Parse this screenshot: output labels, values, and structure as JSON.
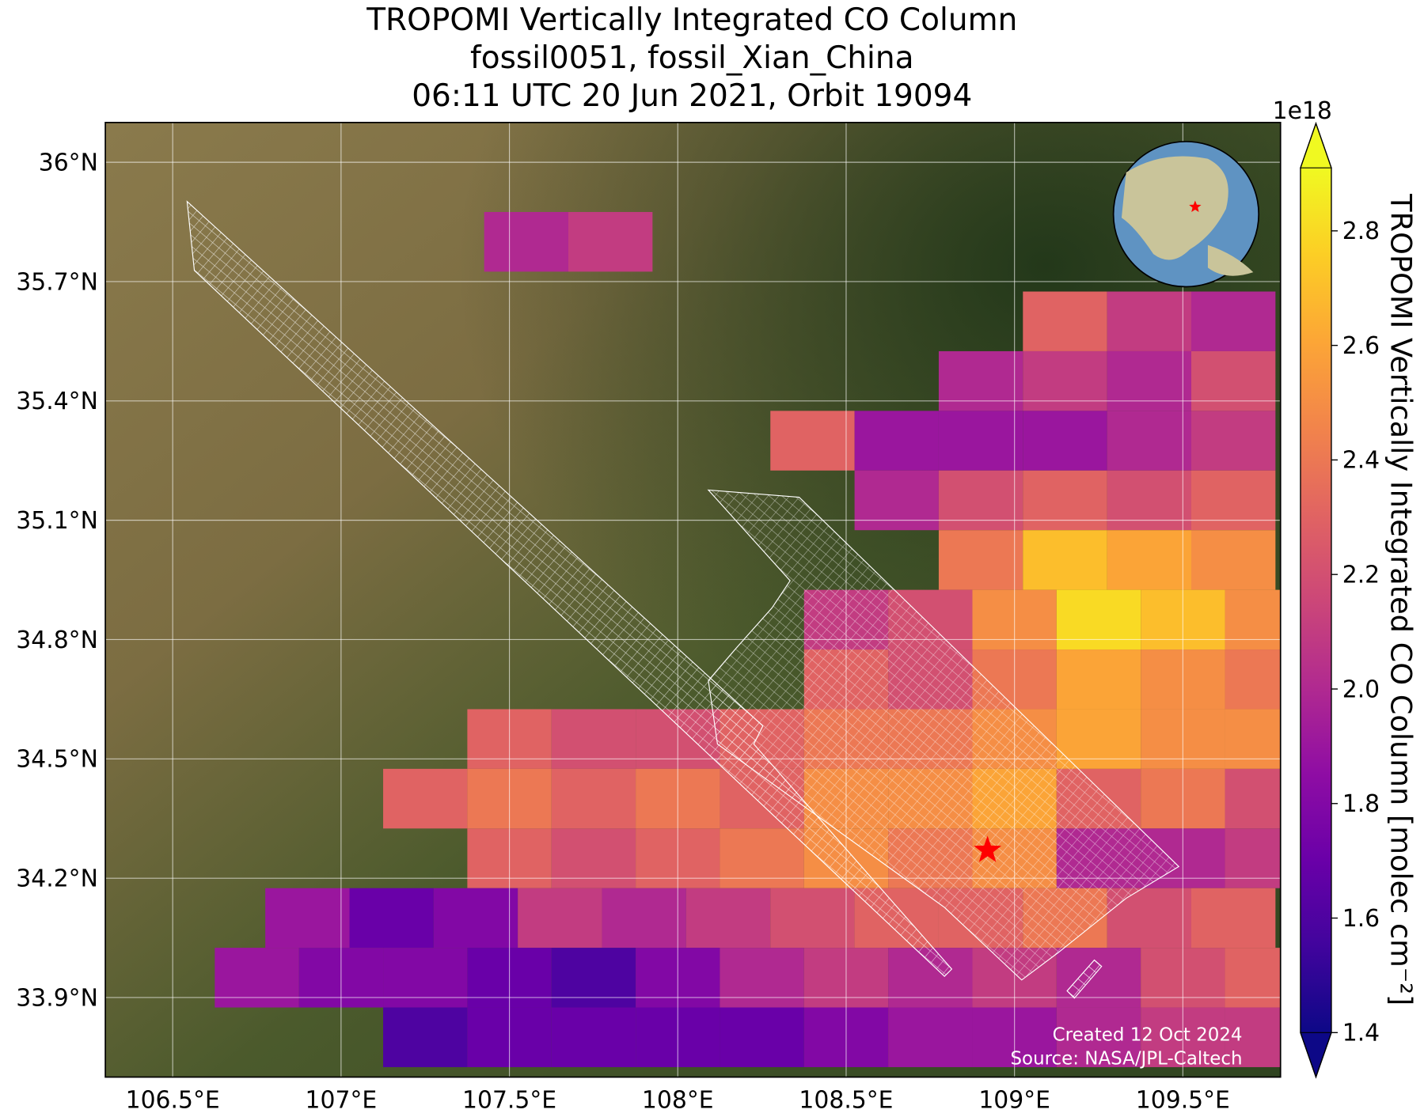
{
  "chart_data": {
    "type": "map",
    "title": [
      "TROPOMI Vertically Integrated CO Column",
      "fossil0051, fossil_Xian_China",
      "06:11 UTC 20 Jun 2021, Orbit 19094"
    ],
    "xlim": [
      106.3,
      109.79
    ],
    "ylim": [
      33.7,
      36.1
    ],
    "xticks": [
      {
        "value": 106.5,
        "label": "106.5°E"
      },
      {
        "value": 107,
        "label": "107°E"
      },
      {
        "value": 107.5,
        "label": "107.5°E"
      },
      {
        "value": 108,
        "label": "108°E"
      },
      {
        "value": 108.5,
        "label": "108.5°E"
      },
      {
        "value": 109,
        "label": "109°E"
      },
      {
        "value": 109.5,
        "label": "109.5°E"
      }
    ],
    "yticks": [
      {
        "value": 33.9,
        "label": "33.9°N"
      },
      {
        "value": 34.2,
        "label": "34.2°N"
      },
      {
        "value": 34.5,
        "label": "34.5°N"
      },
      {
        "value": 34.8,
        "label": "34.8°N"
      },
      {
        "value": 35.1,
        "label": "35.1°N"
      },
      {
        "value": 35.4,
        "label": "35.4°N"
      },
      {
        "value": 35.7,
        "label": "35.7°N"
      },
      {
        "value": 36,
        "label": "36°N"
      }
    ],
    "grid": true,
    "colormap": "plasma",
    "clim": [
      1.4,
      2.91
    ],
    "colorbar_label": "TROPOMI Vertically Integrated CO Column [molec cm⁻²]",
    "colorbar_offset": "1e18",
    "colorbar_ticks": [
      1.4,
      1.6,
      1.8,
      {
        "value": 2,
        "label": "2.0"
      },
      2.2,
      2.4,
      2.6,
      2.8
    ],
    "rows": [
      {
        "lat": 35.8,
        "lon": [
          107.55,
          107.8
        ],
        "values": [
          2.0,
          2.1
        ]
      },
      {
        "lat": 35.6,
        "lon": [
          109.15,
          109.4,
          109.65
        ],
        "values": [
          2.3,
          2.1,
          2.0
        ]
      },
      {
        "lat": 35.45,
        "lon": [
          108.9,
          109.15,
          109.4,
          109.65
        ],
        "values": [
          2.0,
          2.1,
          2.0,
          2.2
        ]
      },
      {
        "lat": 35.3,
        "lon": [
          108.4,
          108.65,
          108.9,
          109.15,
          109.4,
          109.65
        ],
        "values": [
          2.3,
          1.9,
          1.9,
          1.9,
          2.0,
          2.1
        ]
      },
      {
        "lat": 35.15,
        "lon": [
          108.65,
          108.9,
          109.15,
          109.4,
          109.65
        ],
        "values": [
          2.0,
          2.2,
          2.3,
          2.2,
          2.3
        ]
      },
      {
        "lat": 35.0,
        "lon": [
          108.9,
          109.15,
          109.4,
          109.65
        ],
        "values": [
          2.4,
          2.7,
          2.6,
          2.5
        ]
      },
      {
        "lat": 34.85,
        "lon": [
          108.5,
          108.75,
          109.0,
          109.25,
          109.5,
          109.75
        ],
        "values": [
          2.1,
          2.2,
          2.5,
          2.8,
          2.7,
          2.5
        ]
      },
      {
        "lat": 34.7,
        "lon": [
          108.5,
          108.75,
          109.0,
          109.25,
          109.5,
          109.75
        ],
        "values": [
          2.3,
          2.2,
          2.4,
          2.6,
          2.5,
          2.4
        ]
      },
      {
        "lat": 34.55,
        "lon": [
          107.5,
          107.75,
          108.0,
          108.25,
          108.5,
          108.75,
          109.0,
          109.25,
          109.5,
          109.75
        ],
        "values": [
          2.3,
          2.2,
          2.2,
          2.3,
          2.4,
          2.4,
          2.5,
          2.6,
          2.5,
          2.5
        ]
      },
      {
        "lat": 34.4,
        "lon": [
          107.25,
          107.5,
          107.75,
          108.0,
          108.25,
          108.5,
          108.75,
          109.0,
          109.25,
          109.5,
          109.75
        ],
        "values": [
          2.3,
          2.4,
          2.3,
          2.4,
          2.3,
          2.5,
          2.5,
          2.6,
          2.3,
          2.4,
          2.2
        ]
      },
      {
        "lat": 34.25,
        "lon": [
          107.5,
          107.75,
          108.0,
          108.25,
          108.5,
          108.75,
          109.0,
          109.25,
          109.5,
          109.75
        ],
        "values": [
          2.3,
          2.2,
          2.3,
          2.4,
          2.5,
          2.4,
          2.5,
          2.0,
          2.0,
          2.1
        ]
      },
      {
        "lat": 34.1,
        "lon": [
          106.9,
          107.15,
          107.4,
          107.65,
          107.9,
          108.15,
          108.4,
          108.65,
          108.9,
          109.15,
          109.4,
          109.65
        ],
        "values": [
          1.9,
          1.7,
          1.8,
          2.1,
          2.0,
          2.1,
          2.2,
          2.3,
          2.3,
          2.4,
          2.2,
          2.3
        ]
      },
      {
        "lat": 33.95,
        "lon": [
          106.75,
          107.0,
          107.25,
          107.5,
          107.75,
          108.0,
          108.25,
          108.5,
          108.75,
          109.0,
          109.25,
          109.5,
          109.75
        ],
        "values": [
          1.9,
          1.8,
          1.8,
          1.7,
          1.6,
          1.8,
          2.0,
          2.1,
          2.0,
          2.1,
          2.0,
          2.2,
          2.3
        ]
      },
      {
        "lat": 33.8,
        "lon": [
          107.25,
          107.5,
          107.75,
          108.0,
          108.25,
          108.5,
          108.75,
          109.0,
          109.25,
          109.5,
          109.75
        ],
        "values": [
          1.6,
          1.7,
          1.7,
          1.7,
          1.7,
          1.8,
          1.9,
          1.9,
          2.0,
          2.1,
          2.1
        ]
      }
    ],
    "site": {
      "lon": 108.92,
      "lat": 34.27
    },
    "annotations": [
      "Created 12 Oct 2024",
      "Source: NASA/JPL-Caltech"
    ]
  }
}
